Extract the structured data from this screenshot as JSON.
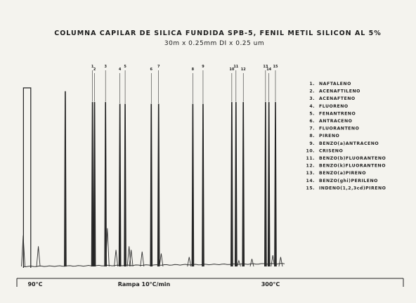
{
  "chart_data": {
    "type": "line",
    "title": "COLUMNA CAPILAR DE SILICA FUNDIDA SPB-5, FENIL METIL SILICON AL 5%",
    "subtitle": "30m x 0.25mm DI x 0.25 um",
    "x_start_label": "90°C",
    "x_middle_label": "Rampa 10°C/min",
    "x_end_label": "300°C",
    "xlim": [
      0,
      100
    ],
    "ylim": [
      0,
      100
    ],
    "grid": false,
    "legend_position": "right",
    "legend": [
      {
        "number": "1.",
        "name": "NAFTALENO"
      },
      {
        "number": "2.",
        "name": "ACENAFTILENO"
      },
      {
        "number": "3.",
        "name": "ACENAFTENO"
      },
      {
        "number": "4.",
        "name": "FLUORENO"
      },
      {
        "number": "5.",
        "name": "FENANTRENO"
      },
      {
        "number": "6.",
        "name": "ANTRACENO"
      },
      {
        "number": "7.",
        "name": "FLUORANTENO"
      },
      {
        "number": "8.",
        "name": "PIRENO"
      },
      {
        "number": "9.",
        "name": "BENZO(a)ANTRACENO"
      },
      {
        "number": "10.",
        "name": "CRISENO"
      },
      {
        "number": "11.",
        "name": "BENZO(b)FLUORANTENO"
      },
      {
        "number": "12.",
        "name": "BENZO(k)FLUORANTENO"
      },
      {
        "number": "13.",
        "name": "BENZO(a)PIRENO"
      },
      {
        "number": "14.",
        "name": "BENZO(ghi)PERILENO"
      },
      {
        "number": "15.",
        "name": "INDENO(1,2,3cd)PIRENO"
      }
    ],
    "solvent_peak": {
      "x": 1.5,
      "y": 100,
      "width": 2.8
    },
    "peaks": [
      {
        "x": 16.1,
        "y": 98,
        "w": 0.3
      },
      {
        "x": 26.5,
        "y": 92,
        "w": 0.3,
        "label": "1"
      },
      {
        "x": 27.3,
        "y": 92,
        "w": 0.3,
        "label": "2"
      },
      {
        "x": 31.5,
        "y": 92,
        "w": 0.3,
        "label": "3"
      },
      {
        "x": 37.0,
        "y": 91,
        "w": 0.3,
        "label": "4"
      },
      {
        "x": 39.0,
        "y": 91,
        "w": 0.3,
        "label": "5"
      },
      {
        "x": 49.0,
        "y": 91,
        "w": 0.3,
        "label": "6"
      },
      {
        "x": 51.8,
        "y": 91,
        "w": 0.3,
        "label": "7"
      },
      {
        "x": 64.9,
        "y": 91,
        "w": 0.3,
        "label": "8"
      },
      {
        "x": 68.8,
        "y": 91,
        "w": 0.3,
        "label": "9"
      },
      {
        "x": 79.8,
        "y": 92,
        "w": 0.3,
        "label": "10"
      },
      {
        "x": 81.4,
        "y": 92,
        "w": 0.3,
        "label": "11"
      },
      {
        "x": 84.2,
        "y": 92,
        "w": 0.3,
        "label": "12"
      },
      {
        "x": 92.7,
        "y": 92,
        "w": 0.3,
        "label": "13"
      },
      {
        "x": 94.0,
        "y": 92,
        "w": 0.3,
        "label": "14"
      },
      {
        "x": 96.5,
        "y": 92,
        "w": 0.3,
        "label": "15"
      }
    ],
    "minor_peaks": [
      {
        "x": 0.0,
        "y": 18
      },
      {
        "x": 5.8,
        "y": 12
      },
      {
        "x": 32.2,
        "y": 22
      },
      {
        "x": 35.5,
        "y": 10
      },
      {
        "x": 40.5,
        "y": 12
      },
      {
        "x": 41.3,
        "y": 10
      },
      {
        "x": 45.5,
        "y": 9
      },
      {
        "x": 52.8,
        "y": 8
      },
      {
        "x": 63.5,
        "y": 6
      },
      {
        "x": 82.5,
        "y": 4
      },
      {
        "x": 87.5,
        "y": 5
      },
      {
        "x": 95.5,
        "y": 7
      },
      {
        "x": 98.5,
        "y": 6
      }
    ]
  }
}
